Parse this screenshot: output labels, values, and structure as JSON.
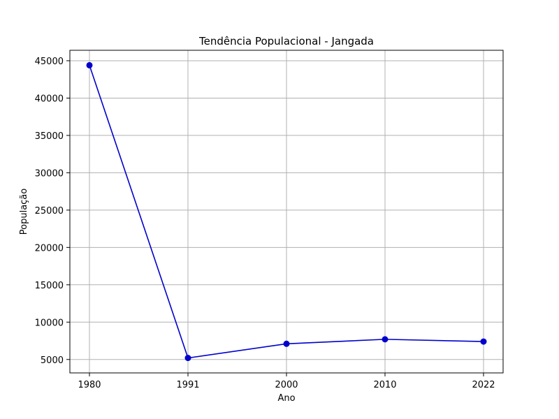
{
  "chart_data": {
    "type": "line",
    "title": "Tendência Populacional - Jangada",
    "xlabel": "Ano",
    "ylabel": "População",
    "categories": [
      "1980",
      "1991",
      "2000",
      "2010",
      "2022"
    ],
    "series": [
      {
        "values": [
          44400,
          5200,
          7100,
          7700,
          7400
        ],
        "color": "#0000cc",
        "marker": "circle"
      }
    ],
    "ylim": [
      3200,
      46400
    ],
    "yticks": [
      5000,
      10000,
      15000,
      20000,
      25000,
      30000,
      35000,
      40000,
      45000
    ],
    "ytick_labels": [
      "5000",
      "10000",
      "15000",
      "20000",
      "25000",
      "30000",
      "35000",
      "40000",
      "45000"
    ],
    "grid": true
  }
}
